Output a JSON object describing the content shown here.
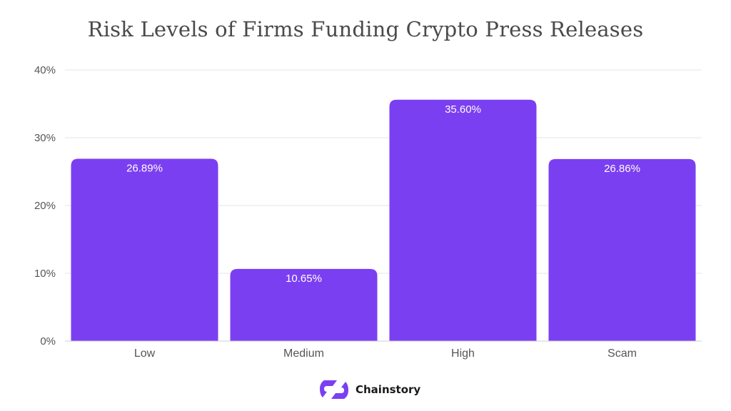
{
  "chart_data": {
    "type": "bar",
    "title": "Risk Levels of Firms Funding Crypto Press Releases",
    "categories": [
      "Low",
      "Medium",
      "High",
      "Scam"
    ],
    "values": [
      26.89,
      10.65,
      35.6,
      26.86
    ],
    "data_labels": [
      "26.89%",
      "10.65%",
      "35.60%",
      "26.86%"
    ],
    "xlabel": "",
    "ylabel": "",
    "ylim": [
      0,
      40
    ],
    "yticks": [
      0,
      10,
      20,
      30,
      40
    ],
    "ytick_labels": [
      "0%",
      "10%",
      "20%",
      "30%",
      "40%"
    ],
    "grid": true,
    "bar_color": "#7b3ff2"
  },
  "brand": {
    "name": "Chainstory",
    "logo_icon": "chainstory-logo-icon",
    "color": "#7b3ff2"
  }
}
